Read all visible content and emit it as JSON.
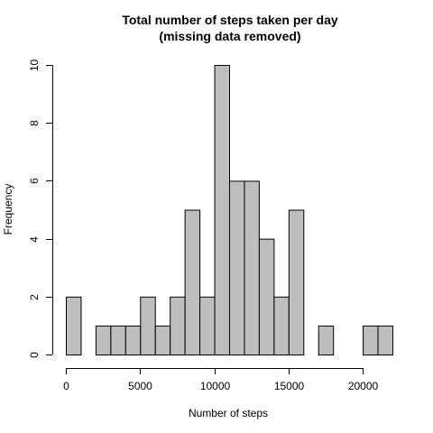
{
  "chart_data": {
    "type": "bar",
    "title": "Total number of steps taken per day",
    "subtitle": "(missing data removed)",
    "xlabel": "Number of steps",
    "ylabel": "Frequency",
    "bin_width": 1000,
    "bins": [
      {
        "start": 0,
        "end": 1000,
        "count": 2
      },
      {
        "start": 1000,
        "end": 2000,
        "count": 0
      },
      {
        "start": 2000,
        "end": 3000,
        "count": 1
      },
      {
        "start": 3000,
        "end": 4000,
        "count": 1
      },
      {
        "start": 4000,
        "end": 5000,
        "count": 1
      },
      {
        "start": 5000,
        "end": 6000,
        "count": 2
      },
      {
        "start": 6000,
        "end": 7000,
        "count": 1
      },
      {
        "start": 7000,
        "end": 8000,
        "count": 2
      },
      {
        "start": 8000,
        "end": 9000,
        "count": 5
      },
      {
        "start": 9000,
        "end": 10000,
        "count": 2
      },
      {
        "start": 10000,
        "end": 11000,
        "count": 10
      },
      {
        "start": 11000,
        "end": 12000,
        "count": 6
      },
      {
        "start": 12000,
        "end": 13000,
        "count": 6
      },
      {
        "start": 13000,
        "end": 14000,
        "count": 4
      },
      {
        "start": 14000,
        "end": 15000,
        "count": 2
      },
      {
        "start": 15000,
        "end": 16000,
        "count": 5
      },
      {
        "start": 16000,
        "end": 17000,
        "count": 0
      },
      {
        "start": 17000,
        "end": 18000,
        "count": 1
      },
      {
        "start": 18000,
        "end": 19000,
        "count": 0
      },
      {
        "start": 19000,
        "end": 20000,
        "count": 0
      },
      {
        "start": 20000,
        "end": 21000,
        "count": 1
      },
      {
        "start": 21000,
        "end": 22000,
        "count": 1
      }
    ],
    "xlim": [
      0,
      22000
    ],
    "ylim": [
      0,
      10
    ],
    "x_ticks": [
      0,
      5000,
      10000,
      15000,
      20000
    ],
    "y_ticks": [
      0,
      2,
      4,
      6,
      8,
      10
    ],
    "grid": false,
    "bar_color": "#bebebe",
    "border_color": "#000000"
  }
}
